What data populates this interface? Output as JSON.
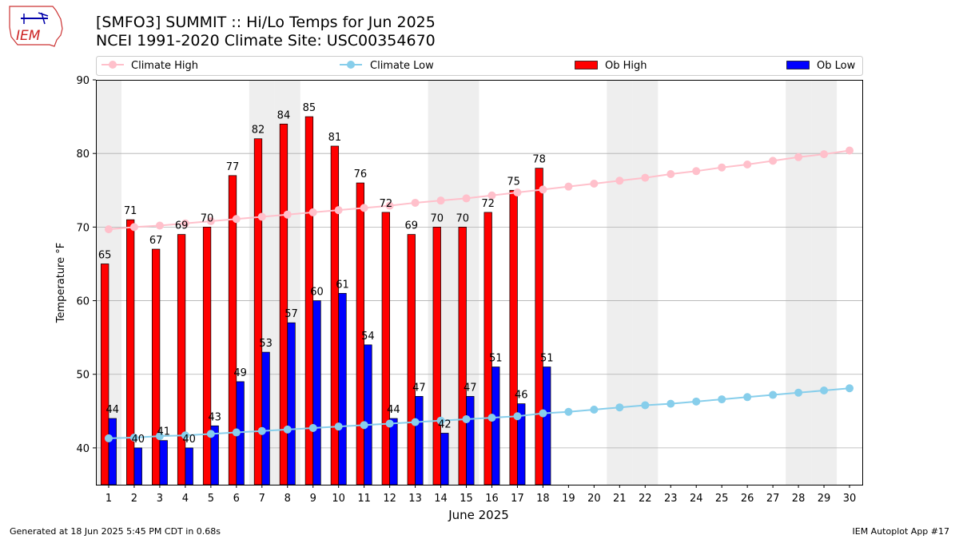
{
  "header": {
    "title_line1": "[SMFO3] SUMMIT :: Hi/Lo Temps for Jun 2025",
    "title_line2": "NCEI 1991-2020 Climate Site: USC00354670",
    "logo_text": "IEM"
  },
  "footer": {
    "generated": "Generated at 18 Jun 2025 5:45 PM CDT in 0.68s",
    "app": "IEM Autoplot App #17"
  },
  "colors": {
    "ob_high": "#ff0000",
    "ob_low": "#0000ff",
    "climate_high": "#ffc0cb",
    "climate_low": "#87ceeb",
    "weekend_shade": "#eeeeee",
    "grid": "#b0b0b0"
  },
  "chart_data": {
    "type": "bar",
    "xlabel": "June 2025",
    "ylabel": "Temperature °F",
    "ylim": [
      35,
      90
    ],
    "xlim": [
      0.5,
      30.5
    ],
    "yticks": [
      40,
      50,
      60,
      70,
      80,
      90
    ],
    "grid": "horizontal",
    "legend_placement": "top",
    "days": [
      1,
      2,
      3,
      4,
      5,
      6,
      7,
      8,
      9,
      10,
      11,
      12,
      13,
      14,
      15,
      16,
      17,
      18,
      19,
      20,
      21,
      22,
      23,
      24,
      25,
      26,
      27,
      28,
      29,
      30
    ],
    "weekend_days": [
      1,
      7,
      8,
      14,
      15,
      21,
      22,
      28,
      29
    ],
    "legend": {
      "climate_high": "Climate High",
      "climate_low": "Climate Low",
      "ob_high": "Ob High",
      "ob_low": "Ob Low"
    },
    "series": [
      {
        "name": "Ob High",
        "values": [
          65,
          71,
          67,
          69,
          70,
          77,
          82,
          84,
          85,
          81,
          76,
          72,
          69,
          70,
          70,
          72,
          75,
          78
        ]
      },
      {
        "name": "Ob Low",
        "values": [
          44,
          40,
          41,
          40,
          43,
          49,
          53,
          57,
          60,
          61,
          54,
          44,
          47,
          42,
          47,
          51,
          46,
          51
        ]
      },
      {
        "name": "Climate High",
        "values": [
          69.7,
          70.0,
          70.2,
          70.5,
          70.8,
          71.1,
          71.4,
          71.7,
          72.0,
          72.3,
          72.6,
          72.9,
          73.3,
          73.6,
          73.9,
          74.3,
          74.7,
          75.1,
          75.5,
          75.9,
          76.3,
          76.7,
          77.2,
          77.6,
          78.1,
          78.5,
          79.0,
          79.5,
          79.9,
          80.4
        ]
      },
      {
        "name": "Climate Low",
        "values": [
          41.3,
          41.4,
          41.6,
          41.7,
          41.9,
          42.1,
          42.3,
          42.5,
          42.7,
          42.9,
          43.1,
          43.3,
          43.5,
          43.7,
          43.9,
          44.1,
          44.3,
          44.7,
          44.9,
          45.2,
          45.5,
          45.8,
          46.0,
          46.3,
          46.6,
          46.9,
          47.2,
          47.5,
          47.8,
          48.1
        ]
      }
    ]
  }
}
